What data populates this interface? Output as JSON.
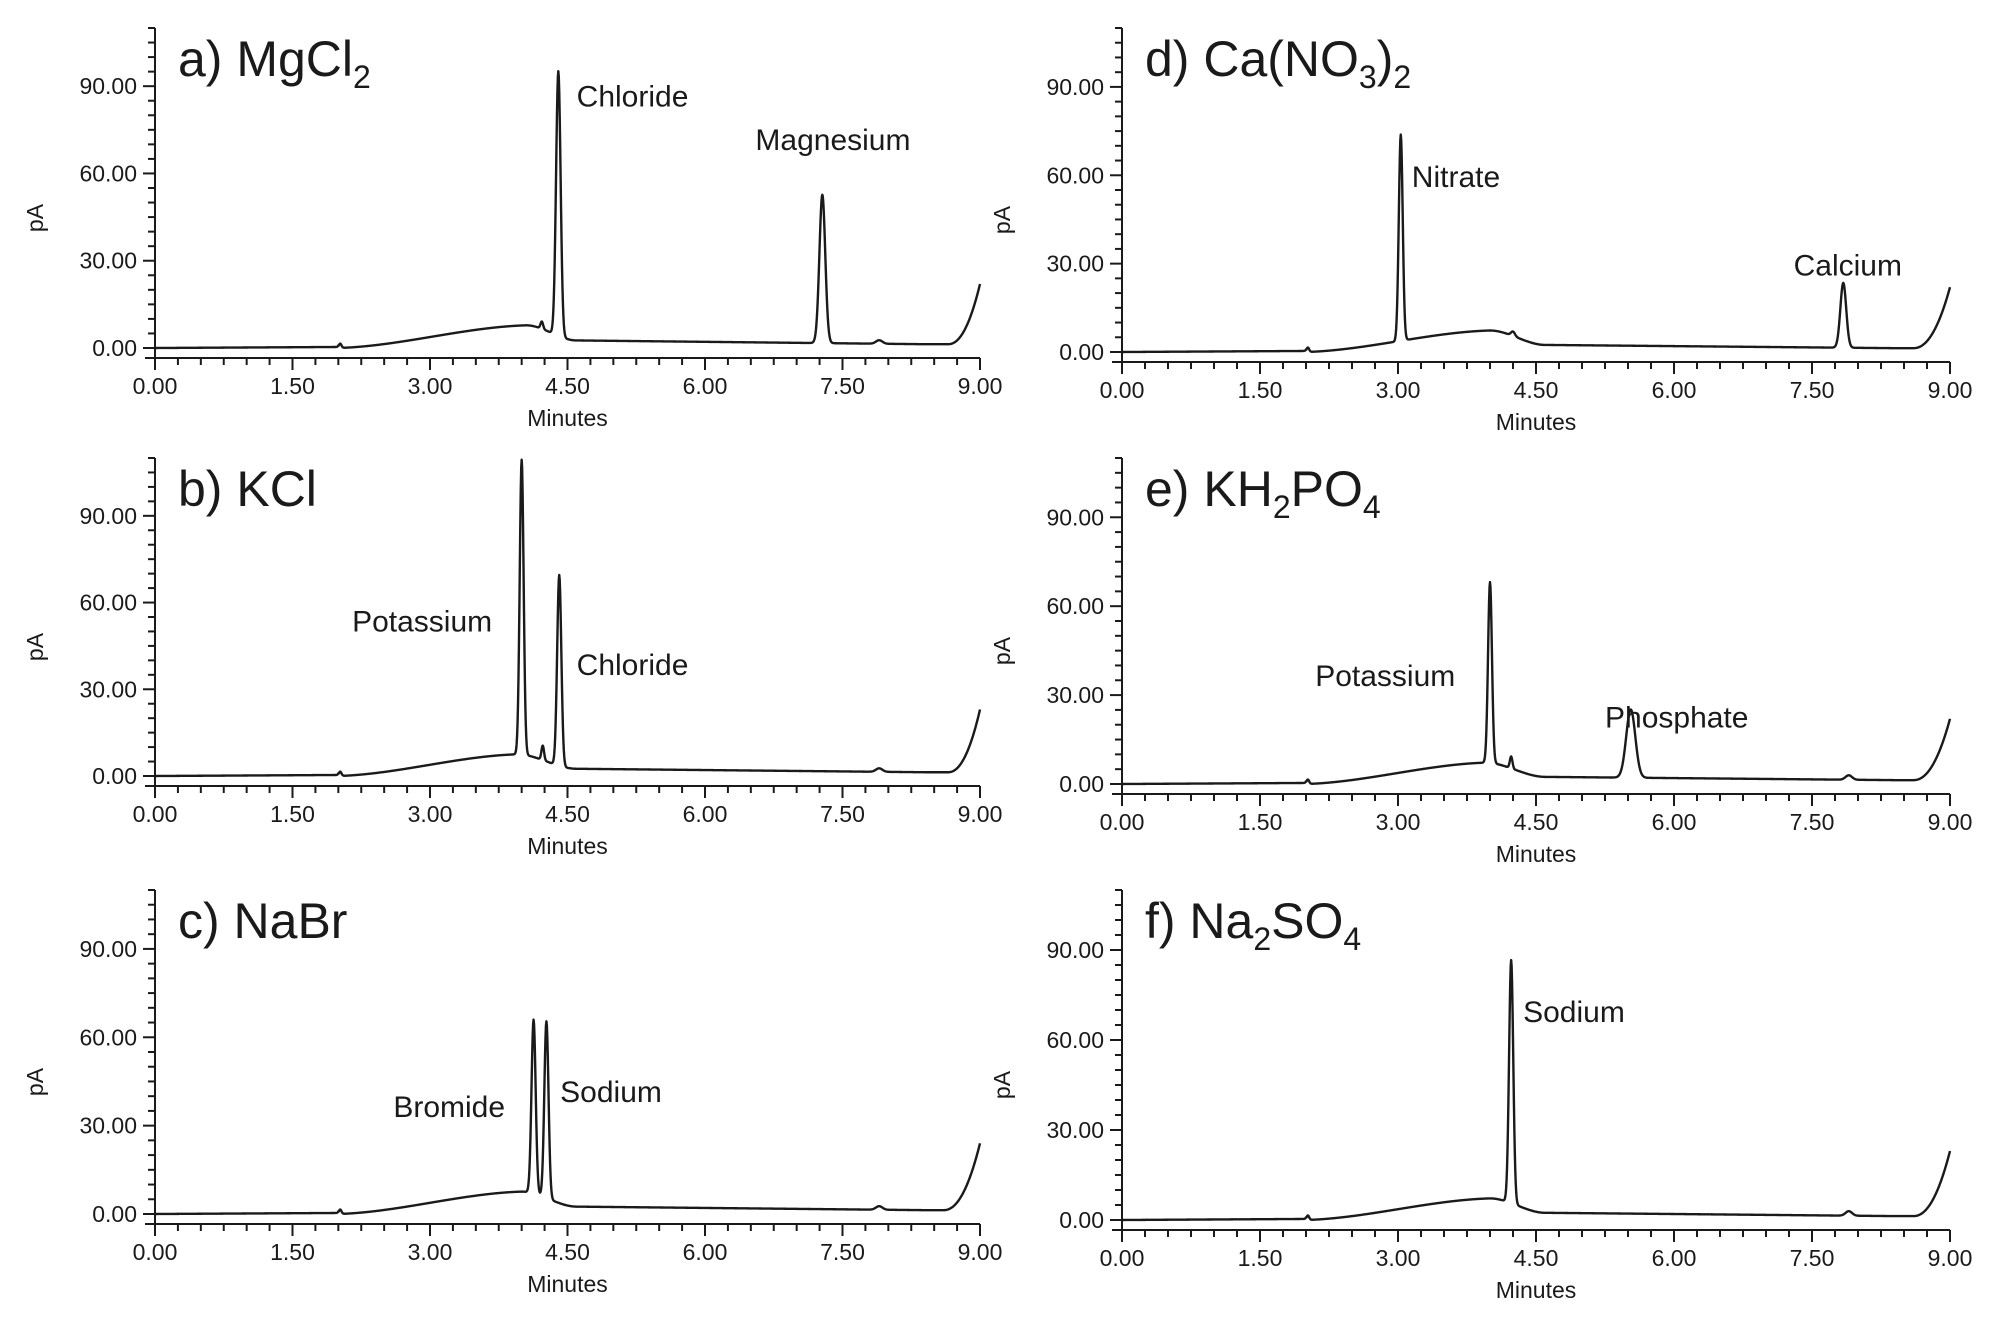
{
  "chart_data": [
    {
      "type": "line",
      "title": "a) MgCl2",
      "title_parts": [
        {
          "t": "a) MgCl"
        },
        {
          "t": "2",
          "sub": true
        }
      ],
      "xlabel": "Minutes",
      "ylabel": "pA",
      "xlim": [
        0,
        9
      ],
      "ylim": [
        0,
        110
      ],
      "xticks": [
        "0.00",
        "1.50",
        "3.00",
        "4.50",
        "6.00",
        "7.50",
        "9.00"
      ],
      "yticks": [
        "0.00",
        "30.00",
        "60.00",
        "90.00"
      ],
      "baseline_hump": {
        "start": 2.0,
        "peak_time": 4.05,
        "peak": 7.8,
        "end": 4.6,
        "tail": 2.6,
        "late": 1.3
      },
      "late_rise": {
        "start": 8.65,
        "end_value": 22
      },
      "small_bumps": [
        {
          "t": 2.02,
          "h": 1.5,
          "w": 0.02
        },
        {
          "t": 4.22,
          "h": 2.5,
          "w": 0.02
        },
        {
          "t": 7.9,
          "h": 1.2,
          "w": 0.05
        }
      ],
      "peaks": [
        {
          "name": "Chloride",
          "time": 4.4,
          "height": 91,
          "width": 0.035
        },
        {
          "name": "Magnesium",
          "time": 7.28,
          "height": 51,
          "width": 0.045
        }
      ],
      "annotations": [
        {
          "text": "Chloride",
          "x": 4.6,
          "y": 83
        },
        {
          "text": "Magnesium",
          "x": 6.55,
          "y": 68
        }
      ]
    },
    {
      "type": "line",
      "title": "b) KCl",
      "title_parts": [
        {
          "t": "b) KCl"
        }
      ],
      "xlabel": "Minutes",
      "ylabel": "pA",
      "xlim": [
        0,
        9
      ],
      "ylim": [
        0,
        110
      ],
      "xticks": [
        "0.00",
        "1.50",
        "3.00",
        "4.50",
        "6.00",
        "7.50",
        "9.00"
      ],
      "yticks": [
        "0.00",
        "30.00",
        "60.00",
        "90.00"
      ],
      "baseline_hump": {
        "start": 2.0,
        "peak_time": 3.95,
        "peak": 7.5,
        "end": 4.6,
        "tail": 2.5,
        "late": 1.3
      },
      "late_rise": {
        "start": 8.65,
        "end_value": 23
      },
      "small_bumps": [
        {
          "t": 2.02,
          "h": 1.5,
          "w": 0.02
        },
        {
          "t": 4.23,
          "h": 5,
          "w": 0.02
        },
        {
          "t": 7.9,
          "h": 1.2,
          "w": 0.05
        }
      ],
      "peaks": [
        {
          "name": "Potassium",
          "time": 4.0,
          "height": 102,
          "width": 0.03
        },
        {
          "name": "Chloride",
          "time": 4.41,
          "height": 66,
          "width": 0.032
        }
      ],
      "annotations": [
        {
          "text": "Potassium",
          "x": 2.15,
          "y": 50
        },
        {
          "text": "Chloride",
          "x": 4.6,
          "y": 35
        }
      ]
    },
    {
      "type": "line",
      "title": "c) NaBr",
      "title_parts": [
        {
          "t": "c) NaBr"
        }
      ],
      "xlabel": "Minutes",
      "ylabel": "pA",
      "xlim": [
        0,
        9
      ],
      "ylim": [
        0,
        110
      ],
      "xticks": [
        "0.00",
        "1.50",
        "3.00",
        "4.50",
        "6.00",
        "7.50",
        "9.00"
      ],
      "yticks": [
        "0.00",
        "30.00",
        "60.00",
        "90.00"
      ],
      "baseline_hump": {
        "start": 2.0,
        "peak_time": 4.0,
        "peak": 7.6,
        "end": 4.6,
        "tail": 2.5,
        "late": 1.3
      },
      "late_rise": {
        "start": 8.6,
        "end_value": 24
      },
      "small_bumps": [
        {
          "t": 2.02,
          "h": 1.5,
          "w": 0.02
        },
        {
          "t": 7.9,
          "h": 1.2,
          "w": 0.05
        }
      ],
      "peaks": [
        {
          "name": "Bromide",
          "time": 4.13,
          "height": 59,
          "width": 0.032
        },
        {
          "name": "Sodium",
          "time": 4.27,
          "height": 60,
          "width": 0.032
        }
      ],
      "annotations": [
        {
          "text": "Bromide",
          "x": 2.6,
          "y": 33
        },
        {
          "text": "Sodium",
          "x": 4.42,
          "y": 38
        }
      ]
    },
    {
      "type": "line",
      "title": "d) Ca(NO3)2",
      "title_parts": [
        {
          "t": "d) Ca(NO"
        },
        {
          "t": "3",
          "sub": true
        },
        {
          "t": ")"
        },
        {
          "t": "2",
          "sub": true
        }
      ],
      "xlabel": "Minutes",
      "ylabel": "pA",
      "xlim": [
        0,
        9
      ],
      "ylim": [
        0,
        110
      ],
      "xticks": [
        "0.00",
        "1.50",
        "3.00",
        "4.50",
        "6.00",
        "7.50",
        "9.00"
      ],
      "yticks": [
        "0.00",
        "30.00",
        "60.00",
        "90.00"
      ],
      "baseline_hump": {
        "start": 2.0,
        "peak_time": 4.0,
        "peak": 7.3,
        "end": 4.6,
        "tail": 2.4,
        "late": 1.3
      },
      "late_rise": {
        "start": 8.6,
        "end_value": 22
      },
      "small_bumps": [
        {
          "t": 2.02,
          "h": 1.5,
          "w": 0.02
        },
        {
          "t": 4.25,
          "h": 1.5,
          "w": 0.03
        }
      ],
      "peaks": [
        {
          "name": "Nitrate",
          "time": 3.03,
          "height": 70,
          "width": 0.03
        },
        {
          "name": "Calcium",
          "time": 7.84,
          "height": 22,
          "width": 0.045
        }
      ],
      "annotations": [
        {
          "text": "Nitrate",
          "x": 3.15,
          "y": 56
        },
        {
          "text": "Calcium",
          "x": 7.3,
          "y": 26
        }
      ]
    },
    {
      "type": "line",
      "title": "e) KH2PO4",
      "title_parts": [
        {
          "t": "e) KH"
        },
        {
          "t": "2",
          "sub": true
        },
        {
          "t": "PO"
        },
        {
          "t": "4",
          "sub": true
        }
      ],
      "xlabel": "Minutes",
      "ylabel": "pA",
      "xlim": [
        0,
        9
      ],
      "ylim": [
        0,
        110
      ],
      "xticks": [
        "0.00",
        "1.50",
        "3.00",
        "4.50",
        "6.00",
        "7.50",
        "9.00"
      ],
      "yticks": [
        "0.00",
        "30.00",
        "60.00",
        "90.00"
      ],
      "baseline_hump": {
        "start": 2.0,
        "peak_time": 3.95,
        "peak": 7.2,
        "end": 4.6,
        "tail": 2.4,
        "late": 1.3
      },
      "late_rise": {
        "start": 8.6,
        "end_value": 22
      },
      "small_bumps": [
        {
          "t": 2.02,
          "h": 1.5,
          "w": 0.02
        },
        {
          "t": 4.23,
          "h": 4,
          "w": 0.02
        },
        {
          "t": 7.9,
          "h": 1.5,
          "w": 0.05
        }
      ],
      "peaks": [
        {
          "name": "Potassium",
          "time": 4.0,
          "height": 61,
          "width": 0.03
        },
        {
          "name": "Phosphate",
          "time": 5.53,
          "height": 23,
          "width": 0.07
        }
      ],
      "annotations": [
        {
          "text": "Potassium",
          "x": 2.1,
          "y": 33
        },
        {
          "text": "Phosphate",
          "x": 5.25,
          "y": 19
        }
      ]
    },
    {
      "type": "line",
      "title": "f) Na2SO4",
      "title_parts": [
        {
          "t": "f) Na"
        },
        {
          "t": "2",
          "sub": true
        },
        {
          "t": "SO"
        },
        {
          "t": "4",
          "sub": true
        }
      ],
      "xlabel": "Minutes",
      "ylabel": "pA",
      "xlim": [
        0,
        9
      ],
      "ylim": [
        0,
        110
      ],
      "xticks": [
        "0.00",
        "1.50",
        "3.00",
        "4.50",
        "6.00",
        "7.50",
        "9.00"
      ],
      "yticks": [
        "0.00",
        "30.00",
        "60.00",
        "90.00"
      ],
      "baseline_hump": {
        "start": 2.0,
        "peak_time": 4.0,
        "peak": 7.2,
        "end": 4.6,
        "tail": 2.4,
        "late": 1.3
      },
      "late_rise": {
        "start": 8.6,
        "end_value": 23
      },
      "small_bumps": [
        {
          "t": 2.02,
          "h": 1.5,
          "w": 0.02
        },
        {
          "t": 7.9,
          "h": 1.5,
          "w": 0.05
        }
      ],
      "peaks": [
        {
          "name": "Sodium",
          "time": 4.23,
          "height": 81,
          "width": 0.032
        }
      ],
      "annotations": [
        {
          "text": "Sodium",
          "x": 4.36,
          "y": 66
        }
      ]
    }
  ]
}
